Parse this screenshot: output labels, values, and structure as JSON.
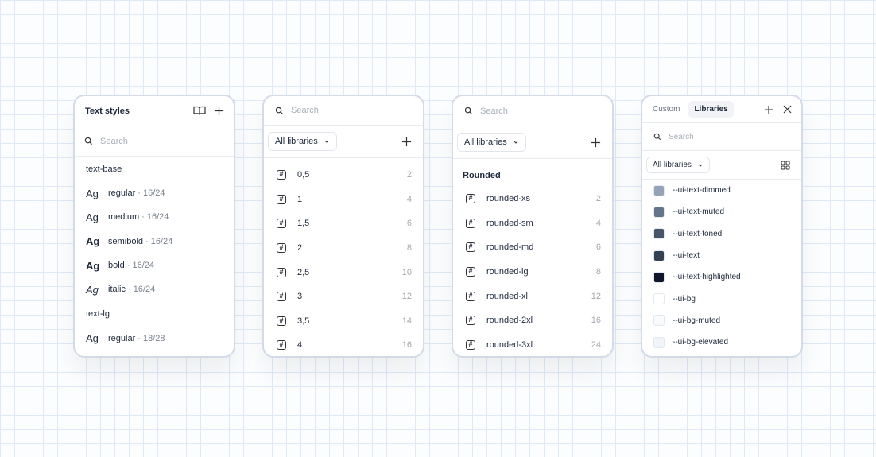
{
  "text_styles": {
    "title": "Text styles",
    "search_placeholder": "Search",
    "groups": [
      {
        "name": "text-base",
        "items": [
          {
            "sample": "Ag",
            "name": "regular",
            "meta": "· 16/24",
            "weight": "400",
            "italic": false
          },
          {
            "sample": "Ag",
            "name": "medium",
            "meta": "· 16/24",
            "weight": "500",
            "italic": false
          },
          {
            "sample": "Ag",
            "name": "semibold",
            "meta": "· 16/24",
            "weight": "600",
            "italic": false
          },
          {
            "sample": "Ag",
            "name": "bold",
            "meta": "· 16/24",
            "weight": "700",
            "italic": false
          },
          {
            "sample": "Ag",
            "name": "italic",
            "meta": "· 16/24",
            "weight": "400",
            "italic": true
          }
        ]
      },
      {
        "name": "text-lg",
        "items": [
          {
            "sample": "Ag",
            "name": "regular",
            "meta": "· 18/28",
            "weight": "400",
            "italic": false
          }
        ]
      }
    ]
  },
  "spacing": {
    "search_placeholder": "Search",
    "dropdown": "All libraries",
    "items": [
      {
        "name": "0,5",
        "value": "2"
      },
      {
        "name": "1",
        "value": "4"
      },
      {
        "name": "1,5",
        "value": "6"
      },
      {
        "name": "2",
        "value": "8"
      },
      {
        "name": "2,5",
        "value": "10"
      },
      {
        "name": "3",
        "value": "12"
      },
      {
        "name": "3,5",
        "value": "14"
      },
      {
        "name": "4",
        "value": "16"
      }
    ]
  },
  "radius": {
    "search_placeholder": "Search",
    "dropdown": "All libraries",
    "group": "Rounded",
    "items": [
      {
        "name": "rounded-xs",
        "value": "2"
      },
      {
        "name": "rounded-sm",
        "value": "4"
      },
      {
        "name": "rounded-md",
        "value": "6"
      },
      {
        "name": "rounded-lg",
        "value": "8"
      },
      {
        "name": "rounded-xl",
        "value": "12"
      },
      {
        "name": "rounded-2xl",
        "value": "16"
      },
      {
        "name": "rounded-3xl",
        "value": "24"
      }
    ]
  },
  "colors": {
    "tabs": [
      "Custom",
      "Libraries"
    ],
    "active_tab": "Libraries",
    "search_placeholder": "Search",
    "dropdown": "All libraries",
    "items": [
      {
        "name": "--ui-text-dimmed",
        "color": "#94a3b8"
      },
      {
        "name": "--ui-text-muted",
        "color": "#64748b"
      },
      {
        "name": "--ui-text-toned",
        "color": "#475569"
      },
      {
        "name": "--ui-text",
        "color": "#334155"
      },
      {
        "name": "--ui-text-highlighted",
        "color": "#0f172a"
      },
      {
        "name": "--ui-bg",
        "color": "#ffffff"
      },
      {
        "name": "--ui-bg-muted",
        "color": "#f8fafc"
      },
      {
        "name": "--ui-bg-elevated",
        "color": "#f1f5f9"
      }
    ]
  }
}
